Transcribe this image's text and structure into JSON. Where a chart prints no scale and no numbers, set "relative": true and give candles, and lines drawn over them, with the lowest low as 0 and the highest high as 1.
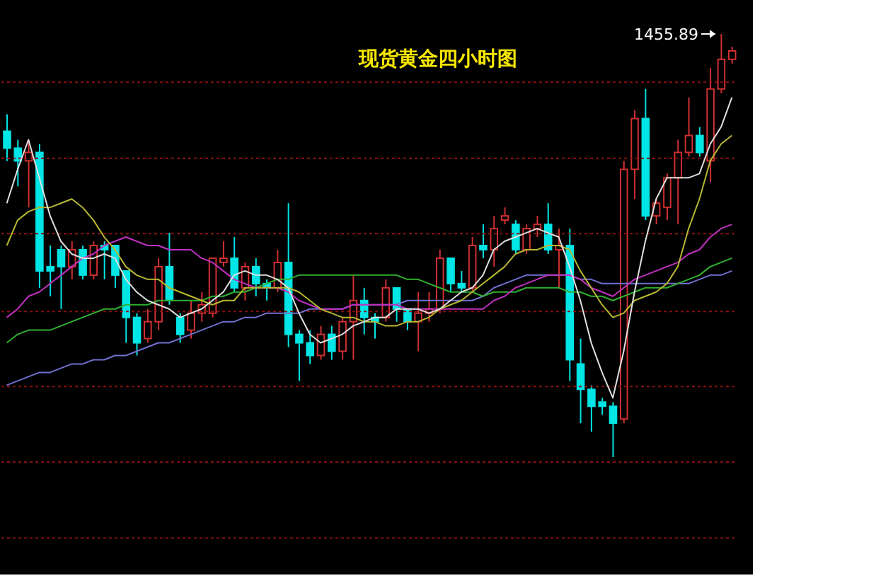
{
  "chart_data": {
    "type": "candlestick",
    "title": "现货黄金四小时图",
    "relative": true,
    "legend": false,
    "ref_lines": [
      {
        "axis": "y",
        "value": 0.886,
        "color": "#8a1010",
        "line_style": "dashed"
      },
      {
        "axis": "y",
        "value": 0.706,
        "color": "#8a1010",
        "line_style": "dashed"
      },
      {
        "axis": "y",
        "value": 0.528,
        "color": "#8a1010",
        "line_style": "dashed"
      },
      {
        "axis": "y",
        "value": 0.344,
        "color": "#8a1010",
        "line_style": "dashed"
      },
      {
        "axis": "y",
        "value": 0.167,
        "color": "#8a1010",
        "line_style": "dashed"
      }
    ],
    "annotations": [
      "1455.89"
    ],
    "categories": [
      null,
      null,
      null,
      null,
      null,
      null,
      null,
      null,
      null,
      null,
      null,
      null,
      null,
      null,
      null,
      null,
      null,
      null,
      null,
      null,
      null,
      null,
      null,
      null,
      null,
      null,
      null,
      null,
      null,
      null,
      null,
      null,
      null,
      null,
      null,
      null,
      null,
      null,
      null,
      null,
      null,
      null,
      null,
      null,
      null,
      null,
      null,
      null,
      null,
      null,
      null,
      null,
      null,
      null,
      null,
      null,
      null,
      null,
      null,
      null,
      null,
      null,
      null,
      null,
      null,
      null,
      null,
      null
    ],
    "ohlc": [
      [
        0.77,
        0.81,
        0.7,
        0.73
      ],
      [
        0.73,
        0.75,
        0.64,
        0.7
      ],
      [
        0.7,
        0.75,
        0.59,
        0.72
      ],
      [
        0.72,
        0.74,
        0.4,
        0.44
      ],
      [
        0.45,
        0.5,
        0.38,
        0.44
      ],
      [
        0.49,
        0.5,
        0.35,
        0.45
      ],
      [
        0.45,
        0.51,
        0.42,
        0.49
      ],
      [
        0.49,
        0.5,
        0.42,
        0.43
      ],
      [
        0.43,
        0.51,
        0.42,
        0.5
      ],
      [
        0.5,
        0.51,
        0.42,
        0.49
      ],
      [
        0.5,
        0.5,
        0.4,
        0.43
      ],
      [
        0.44,
        0.44,
        0.27,
        0.33
      ],
      [
        0.33,
        0.34,
        0.24,
        0.27
      ],
      [
        0.28,
        0.35,
        0.27,
        0.32
      ],
      [
        0.32,
        0.47,
        0.3,
        0.45
      ],
      [
        0.45,
        0.53,
        0.36,
        0.37
      ],
      [
        0.33,
        0.34,
        0.27,
        0.29
      ],
      [
        0.3,
        0.37,
        0.28,
        0.34
      ],
      [
        0.34,
        0.39,
        0.32,
        0.36
      ],
      [
        0.34,
        0.47,
        0.33,
        0.47
      ],
      [
        0.46,
        0.51,
        0.45,
        0.47
      ],
      [
        0.47,
        0.52,
        0.39,
        0.4
      ],
      [
        0.4,
        0.46,
        0.37,
        0.45
      ],
      [
        0.45,
        0.47,
        0.38,
        0.41
      ],
      [
        0.41,
        0.42,
        0.37,
        0.4
      ],
      [
        0.4,
        0.49,
        0.39,
        0.46
      ],
      [
        0.46,
        0.6,
        0.26,
        0.29
      ],
      [
        0.29,
        0.3,
        0.18,
        0.27
      ],
      [
        0.27,
        0.3,
        0.22,
        0.24
      ],
      [
        0.24,
        0.31,
        0.23,
        0.29
      ],
      [
        0.29,
        0.31,
        0.23,
        0.25
      ],
      [
        0.25,
        0.33,
        0.23,
        0.32
      ],
      [
        0.32,
        0.43,
        0.23,
        0.37
      ],
      [
        0.37,
        0.4,
        0.29,
        0.33
      ],
      [
        0.33,
        0.34,
        0.28,
        0.32
      ],
      [
        0.33,
        0.42,
        0.32,
        0.4
      ],
      [
        0.4,
        0.4,
        0.32,
        0.35
      ],
      [
        0.35,
        0.35,
        0.3,
        0.32
      ],
      [
        0.32,
        0.39,
        0.25,
        0.34
      ],
      [
        0.34,
        0.39,
        0.32,
        0.35
      ],
      [
        0.35,
        0.49,
        0.34,
        0.47
      ],
      [
        0.47,
        0.47,
        0.39,
        0.41
      ],
      [
        0.41,
        0.44,
        0.39,
        0.4
      ],
      [
        0.4,
        0.52,
        0.39,
        0.5
      ],
      [
        0.5,
        0.55,
        0.47,
        0.49
      ],
      [
        0.49,
        0.57,
        0.45,
        0.54
      ],
      [
        0.56,
        0.59,
        0.55,
        0.57
      ],
      [
        0.55,
        0.56,
        0.48,
        0.49
      ],
      [
        0.49,
        0.55,
        0.48,
        0.54
      ],
      [
        0.54,
        0.57,
        0.52,
        0.55
      ],
      [
        0.55,
        0.6,
        0.48,
        0.49
      ],
      [
        0.49,
        0.54,
        0.4,
        0.5
      ],
      [
        0.5,
        0.54,
        0.18,
        0.23
      ],
      [
        0.22,
        0.28,
        0.08,
        0.16
      ],
      [
        0.16,
        0.17,
        0.06,
        0.12
      ],
      [
        0.13,
        0.14,
        0.1,
        0.12
      ],
      [
        0.12,
        0.13,
        0,
        0.08
      ],
      [
        0.09,
        0.7,
        0.08,
        0.68
      ],
      [
        0.68,
        0.82,
        0.61,
        0.8
      ],
      [
        0.8,
        0.87,
        0.56,
        0.57
      ],
      [
        0.57,
        0.61,
        0.55,
        0.6
      ],
      [
        0.59,
        0.67,
        0.56,
        0.66
      ],
      [
        0.66,
        0.75,
        0.55,
        0.72
      ],
      [
        0.72,
        0.85,
        0.71,
        0.76
      ],
      [
        0.76,
        0.78,
        0.71,
        0.72
      ],
      [
        0.7,
        0.92,
        0.65,
        0.87
      ],
      [
        0.87,
        1,
        0.86,
        0.94
      ],
      [
        0.94,
        0.97,
        0.93,
        0.96
      ]
    ],
    "colors": [
      "#00e5e5",
      "#00e5e5",
      "#d03030",
      "#00e5e5",
      "#00e5e5",
      "#00e5e5",
      "#d03030",
      "#00e5e5",
      "#d03030",
      "#00e5e5",
      "#00e5e5",
      "#00e5e5",
      "#00e5e5",
      "#d03030",
      "#d03030",
      "#00e5e5",
      "#00e5e5",
      "#d03030",
      "#d03030",
      "#d03030",
      "#d03030",
      "#00e5e5",
      "#d03030",
      "#00e5e5",
      "#00e5e5",
      "#d03030",
      "#00e5e5",
      "#00e5e5",
      "#00e5e5",
      "#d03030",
      "#00e5e5",
      "#d03030",
      "#d03030",
      "#00e5e5",
      "#00e5e5",
      "#d03030",
      "#00e5e5",
      "#00e5e5",
      "#d03030",
      "#d03030",
      "#d03030",
      "#00e5e5",
      "#00e5e5",
      "#d03030",
      "#00e5e5",
      "#d03030",
      "#d03030",
      "#00e5e5",
      "#d03030",
      "#d03030",
      "#00e5e5",
      "#d03030",
      "#00e5e5",
      "#00e5e5",
      "#00e5e5",
      "#00e5e5",
      "#00e5e5",
      "#d03030",
      "#d03030",
      "#00e5e5",
      "#d03030",
      "#d03030",
      "#d03030",
      "#d03030",
      "#00e5e5",
      "#d03030",
      "#d03030",
      "#d03030"
    ],
    "series": [
      {
        "type": "line",
        "color": "#7070d0",
        "values": [
          0.17,
          0.18,
          0.19,
          0.2,
          0.2,
          0.21,
          0.22,
          0.22,
          0.23,
          0.23,
          0.24,
          0.24,
          0.25,
          0.26,
          0.27,
          0.27,
          0.28,
          0.29,
          0.3,
          0.31,
          0.32,
          0.32,
          0.33,
          0.33,
          0.34,
          0.34,
          0.34,
          0.34,
          0.35,
          0.35,
          0.35,
          0.35,
          0.36,
          0.36,
          0.36,
          0.36,
          0.36,
          0.37,
          0.37,
          0.37,
          0.37,
          0.37,
          0.37,
          0.37,
          0.38,
          0.4,
          0.41,
          0.42,
          0.43,
          0.43,
          0.43,
          0.43,
          0.43,
          0.42,
          0.42,
          0.41,
          0.41,
          0.41,
          0.41,
          0.41,
          0.41,
          0.41,
          0.41,
          0.41,
          0.42,
          0.43,
          0.43,
          0.44
        ]
      },
      {
        "type": "line",
        "color": "#30b030",
        "values": [
          0.27,
          0.29,
          0.3,
          0.3,
          0.3,
          0.31,
          0.32,
          0.33,
          0.34,
          0.35,
          0.35,
          0.36,
          0.36,
          0.36,
          0.37,
          0.37,
          0.37,
          0.37,
          0.37,
          0.38,
          0.38,
          0.39,
          0.39,
          0.4,
          0.41,
          0.42,
          0.42,
          0.43,
          0.43,
          0.43,
          0.43,
          0.43,
          0.43,
          0.43,
          0.43,
          0.43,
          0.43,
          0.42,
          0.42,
          0.41,
          0.4,
          0.39,
          0.39,
          0.39,
          0.38,
          0.39,
          0.39,
          0.39,
          0.4,
          0.4,
          0.4,
          0.4,
          0.39,
          0.39,
          0.38,
          0.38,
          0.37,
          0.38,
          0.39,
          0.4,
          0.4,
          0.4,
          0.41,
          0.42,
          0.43,
          0.45,
          0.46,
          0.47
        ]
      },
      {
        "type": "line",
        "color": "#c030c0",
        "values": [
          0.33,
          0.35,
          0.38,
          0.39,
          0.41,
          0.43,
          0.45,
          0.47,
          0.48,
          0.5,
          0.51,
          0.52,
          0.51,
          0.5,
          0.5,
          0.49,
          0.49,
          0.49,
          0.47,
          0.46,
          0.44,
          0.42,
          0.41,
          0.4,
          0.4,
          0.4,
          0.39,
          0.37,
          0.36,
          0.35,
          0.35,
          0.35,
          0.36,
          0.36,
          0.36,
          0.36,
          0.36,
          0.35,
          0.35,
          0.35,
          0.35,
          0.35,
          0.35,
          0.35,
          0.35,
          0.37,
          0.38,
          0.4,
          0.41,
          0.42,
          0.43,
          0.43,
          0.43,
          0.42,
          0.4,
          0.39,
          0.38,
          0.4,
          0.42,
          0.43,
          0.44,
          0.45,
          0.46,
          0.48,
          0.49,
          0.52,
          0.54,
          0.55
        ]
      },
      {
        "type": "line",
        "color": "#b8b830",
        "values": [
          0.5,
          0.56,
          0.58,
          0.59,
          0.59,
          0.6,
          0.61,
          0.59,
          0.56,
          0.52,
          0.49,
          0.45,
          0.43,
          0.42,
          0.42,
          0.4,
          0.39,
          0.38,
          0.37,
          0.36,
          0.37,
          0.37,
          0.4,
          0.4,
          0.4,
          0.4,
          0.4,
          0.39,
          0.37,
          0.35,
          0.34,
          0.33,
          0.33,
          0.32,
          0.32,
          0.31,
          0.31,
          0.32,
          0.32,
          0.33,
          0.35,
          0.36,
          0.37,
          0.39,
          0.41,
          0.43,
          0.45,
          0.48,
          0.49,
          0.49,
          0.5,
          0.5,
          0.49,
          0.44,
          0.4,
          0.36,
          0.33,
          0.34,
          0.37,
          0.38,
          0.39,
          0.41,
          0.45,
          0.54,
          0.61,
          0.7,
          0.74,
          0.76
        ]
      },
      {
        "type": "line",
        "color": "#e0e0e0",
        "values": [
          0.6,
          0.68,
          0.75,
          0.66,
          0.57,
          0.51,
          0.48,
          0.47,
          0.47,
          0.48,
          0.47,
          0.42,
          0.39,
          0.37,
          0.36,
          0.35,
          0.33,
          0.34,
          0.35,
          0.37,
          0.39,
          0.43,
          0.44,
          0.43,
          0.43,
          0.42,
          0.4,
          0.34,
          0.29,
          0.27,
          0.28,
          0.29,
          0.31,
          0.32,
          0.33,
          0.33,
          0.35,
          0.35,
          0.35,
          0.34,
          0.35,
          0.37,
          0.39,
          0.4,
          0.43,
          0.49,
          0.51,
          0.52,
          0.53,
          0.54,
          0.53,
          0.52,
          0.45,
          0.37,
          0.27,
          0.2,
          0.14,
          0.25,
          0.39,
          0.51,
          0.61,
          0.66,
          0.66,
          0.66,
          0.67,
          0.74,
          0.78,
          0.85
        ]
      }
    ]
  }
}
